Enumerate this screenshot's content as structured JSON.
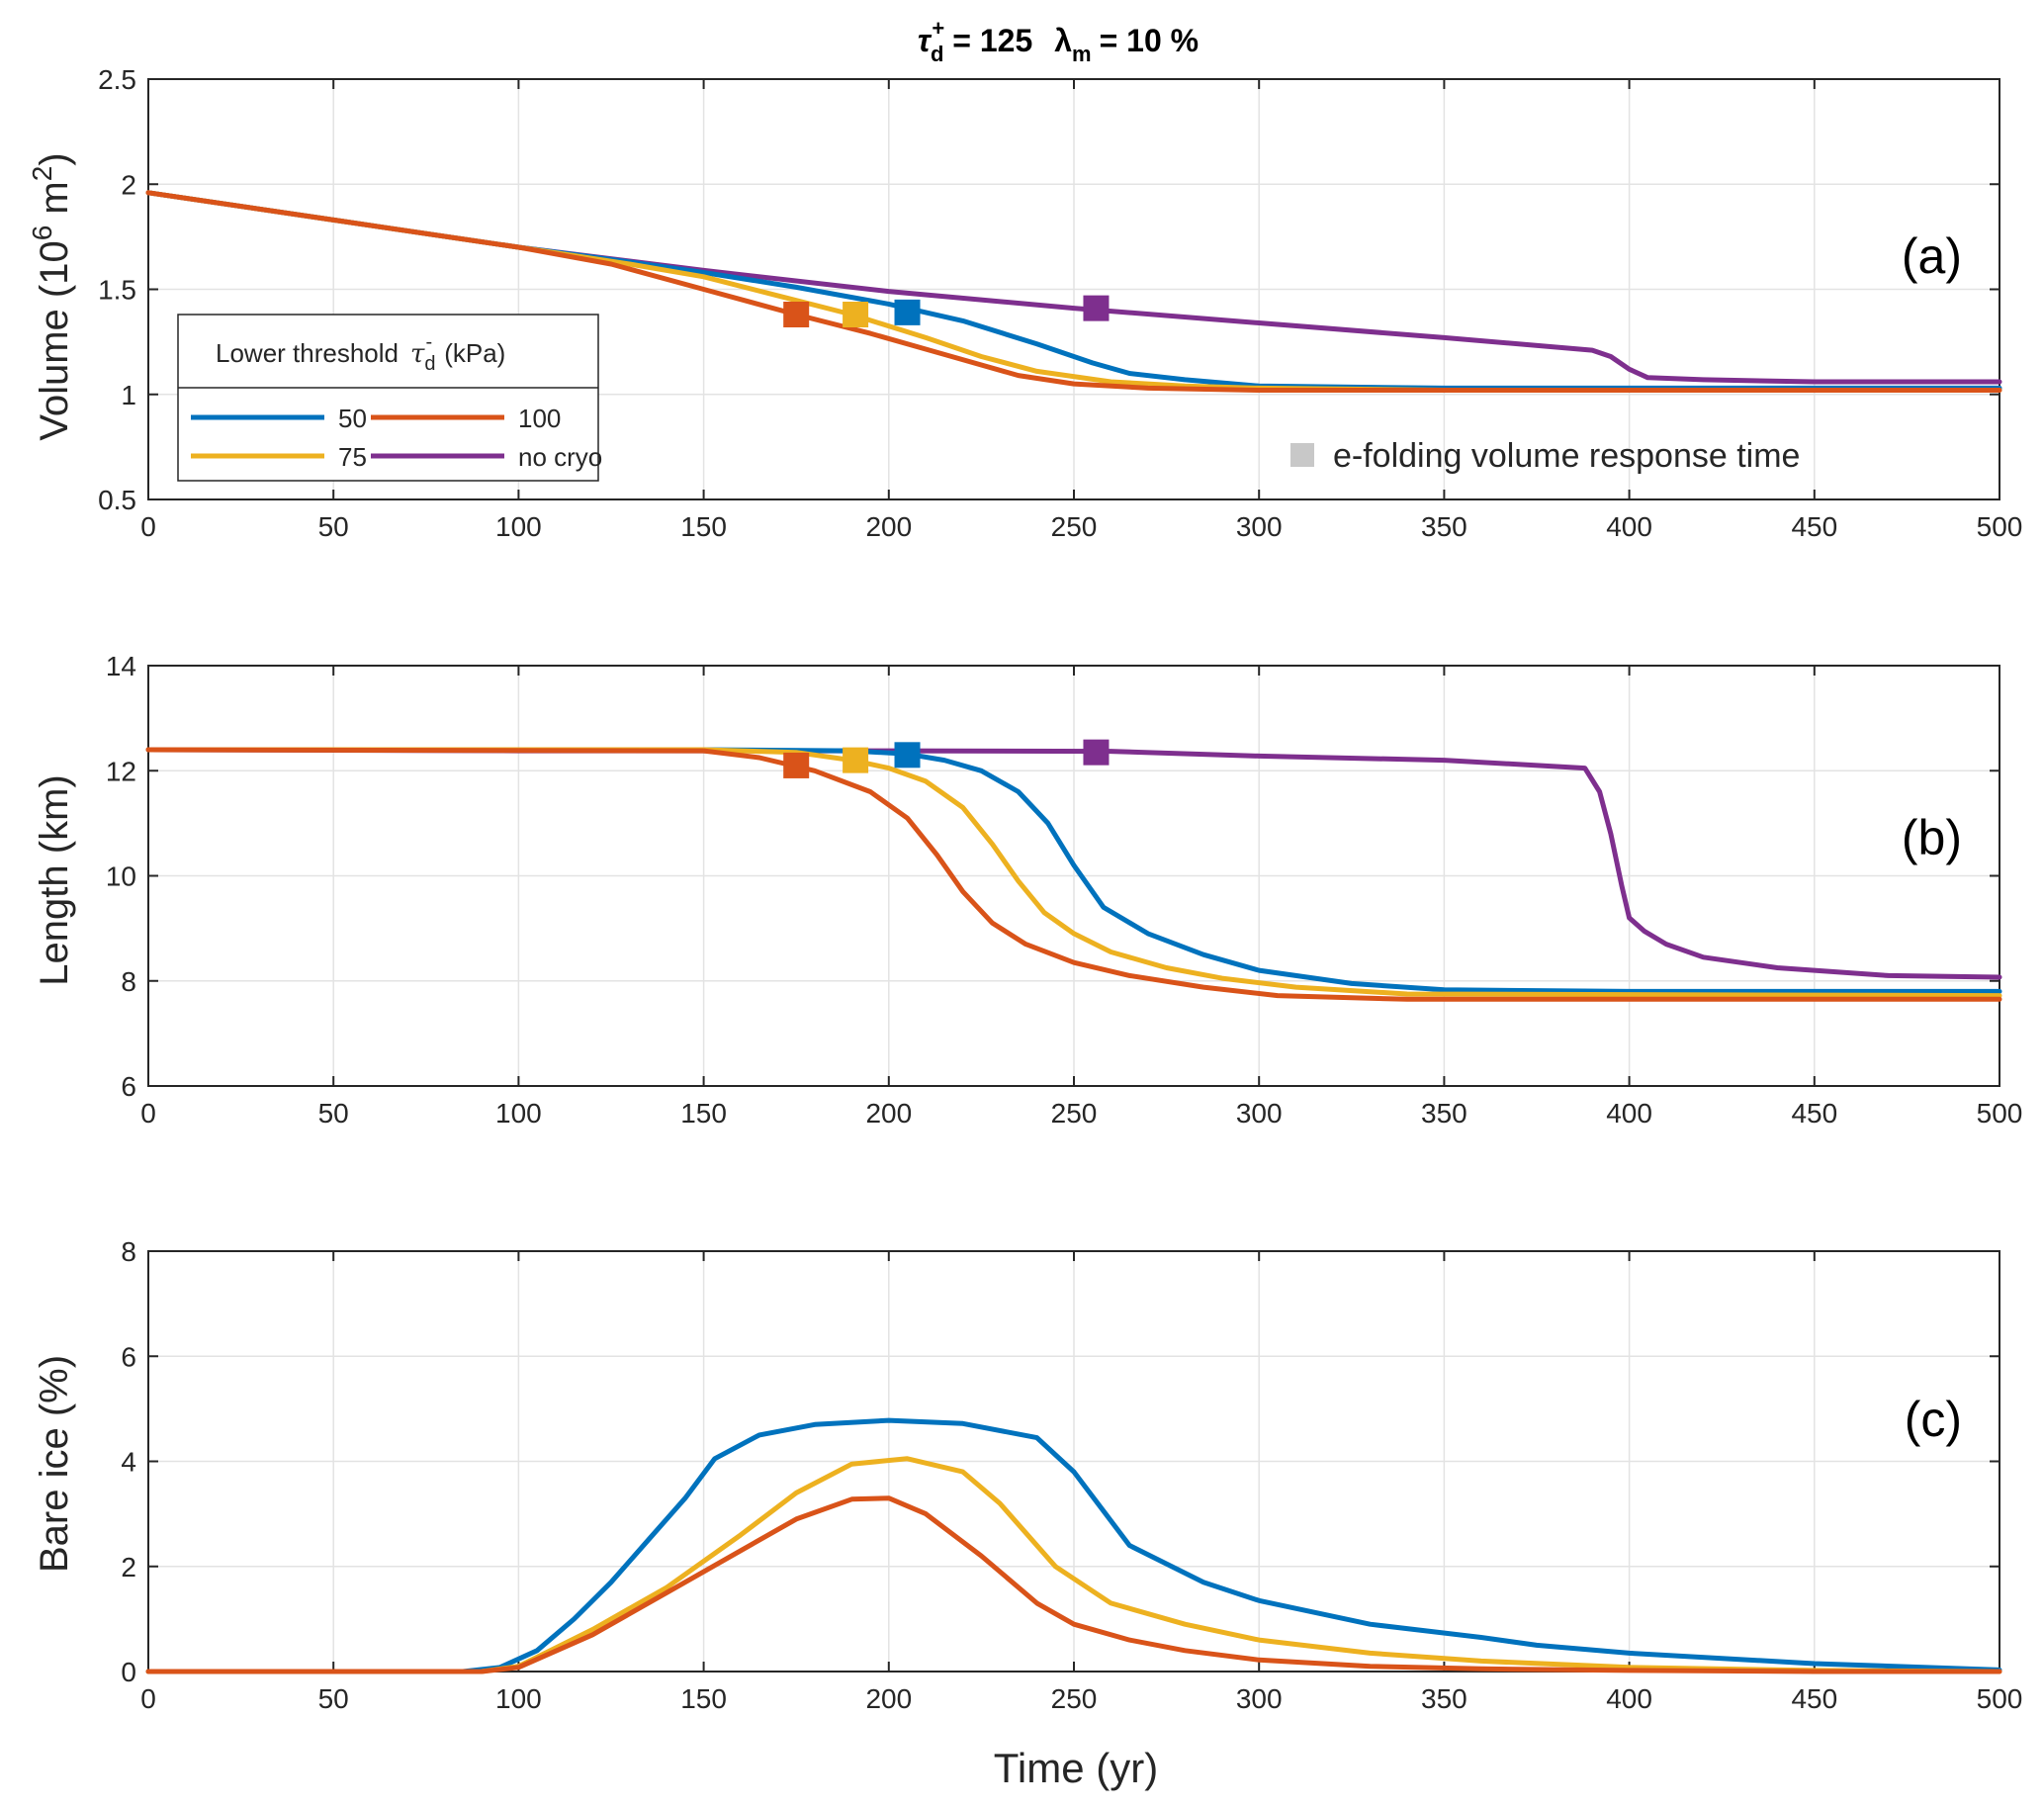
{
  "title": {
    "tau": "τ",
    "tau_sub": "d",
    "tau_sup": "+",
    "tau_value": "= 125",
    "lambda": "λ",
    "lambda_sub": "m",
    "lambda_value": "= 10 %"
  },
  "colors": {
    "50": "#0072BD",
    "75": "#EDB120",
    "100": "#D95319",
    "no cryo": "#7E2F8E",
    "note_marker": "#c8c8c8"
  },
  "legend": {
    "title_prefix": "Lower threshold",
    "title_symbol": "τ",
    "title_sub": "d",
    "title_sup": "-",
    "title_unit": "(kPa)",
    "entries": [
      {
        "key": "50",
        "label": "50"
      },
      {
        "key": "100",
        "label": "100"
      },
      {
        "key": "75",
        "label": "75"
      },
      {
        "key": "no cryo",
        "label": "no cryo"
      }
    ]
  },
  "note": {
    "label": "e-folding volume response time"
  },
  "chart_data": [
    {
      "type": "line",
      "panel_label": "(a)",
      "ylabel_prefix": "Volume (10",
      "ylabel_sup": "6",
      "ylabel_mid": " m",
      "ylabel_sup2": "2",
      "ylabel_suffix": ")",
      "xlabel": "",
      "xlim": [
        0,
        500
      ],
      "ylim": [
        0.5,
        2.5
      ],
      "xticks": [
        0,
        50,
        100,
        150,
        200,
        250,
        300,
        350,
        400,
        450,
        500
      ],
      "yticks": [
        0.5,
        1,
        1.5,
        2,
        2.5
      ],
      "grid": true,
      "series": [
        {
          "name": "50",
          "x": [
            0,
            50,
            100,
            130,
            150,
            175,
            200,
            220,
            240,
            255,
            265,
            280,
            300,
            350,
            400,
            450,
            500
          ],
          "y": [
            1.96,
            1.83,
            1.7,
            1.63,
            1.58,
            1.51,
            1.43,
            1.35,
            1.24,
            1.15,
            1.1,
            1.07,
            1.04,
            1.03,
            1.03,
            1.03,
            1.03
          ]
        },
        {
          "name": "75",
          "x": [
            0,
            50,
            100,
            130,
            150,
            170,
            190,
            210,
            225,
            240,
            260,
            280,
            300,
            350,
            400,
            450,
            500
          ],
          "y": [
            1.96,
            1.83,
            1.7,
            1.62,
            1.56,
            1.47,
            1.38,
            1.27,
            1.18,
            1.11,
            1.06,
            1.04,
            1.03,
            1.02,
            1.02,
            1.02,
            1.02
          ]
        },
        {
          "name": "100",
          "x": [
            0,
            50,
            100,
            125,
            150,
            175,
            195,
            215,
            235,
            250,
            270,
            300,
            350,
            400,
            450,
            500
          ],
          "y": [
            1.96,
            1.83,
            1.7,
            1.62,
            1.5,
            1.38,
            1.29,
            1.19,
            1.09,
            1.05,
            1.03,
            1.02,
            1.02,
            1.02,
            1.02,
            1.02
          ]
        },
        {
          "name": "no cryo",
          "x": [
            0,
            50,
            100,
            150,
            200,
            250,
            300,
            350,
            390,
            395,
            400,
            405,
            420,
            450,
            500
          ],
          "y": [
            1.96,
            1.83,
            1.7,
            1.59,
            1.49,
            1.41,
            1.34,
            1.27,
            1.21,
            1.18,
            1.12,
            1.08,
            1.07,
            1.06,
            1.06
          ]
        }
      ],
      "markers": [
        {
          "series": "100",
          "x": 175,
          "y": 1.38
        },
        {
          "series": "75",
          "x": 191,
          "y": 1.38
        },
        {
          "series": "50",
          "x": 205,
          "y": 1.39
        },
        {
          "series": "no cryo",
          "x": 256,
          "y": 1.41
        }
      ]
    },
    {
      "type": "line",
      "panel_label": "(b)",
      "ylabel": "Length (km)",
      "xlabel": "",
      "xlim": [
        0,
        500
      ],
      "ylim": [
        6,
        14
      ],
      "xticks": [
        0,
        50,
        100,
        150,
        200,
        250,
        300,
        350,
        400,
        450,
        500
      ],
      "yticks": [
        6,
        8,
        10,
        12,
        14
      ],
      "grid": true,
      "series": [
        {
          "name": "50",
          "x": [
            0,
            150,
            190,
            205,
            215,
            225,
            235,
            243,
            250,
            258,
            270,
            285,
            300,
            325,
            350,
            400,
            500
          ],
          "y": [
            12.4,
            12.4,
            12.38,
            12.32,
            12.2,
            12.0,
            11.6,
            11.0,
            10.2,
            9.4,
            8.9,
            8.5,
            8.2,
            7.95,
            7.83,
            7.8,
            7.8
          ]
        },
        {
          "name": "75",
          "x": [
            0,
            150,
            175,
            190,
            200,
            210,
            220,
            228,
            235,
            242,
            250,
            260,
            275,
            290,
            310,
            340,
            500
          ],
          "y": [
            12.4,
            12.4,
            12.35,
            12.2,
            12.05,
            11.8,
            11.3,
            10.6,
            9.9,
            9.3,
            8.9,
            8.55,
            8.25,
            8.05,
            7.88,
            7.75,
            7.72
          ]
        },
        {
          "name": "100",
          "x": [
            0,
            150,
            165,
            180,
            195,
            205,
            213,
            220,
            228,
            237,
            250,
            265,
            285,
            305,
            340,
            500
          ],
          "y": [
            12.4,
            12.38,
            12.25,
            12.0,
            11.6,
            11.1,
            10.4,
            9.7,
            9.1,
            8.7,
            8.35,
            8.1,
            7.88,
            7.72,
            7.65,
            7.65
          ]
        },
        {
          "name": "no cryo",
          "x": [
            0,
            100,
            200,
            260,
            300,
            350,
            388,
            392,
            395,
            398,
            400,
            404,
            410,
            420,
            440,
            470,
            500
          ],
          "y": [
            12.4,
            12.38,
            12.38,
            12.37,
            12.28,
            12.2,
            12.05,
            11.6,
            10.8,
            9.8,
            9.2,
            8.95,
            8.7,
            8.45,
            8.25,
            8.1,
            8.07
          ]
        }
      ],
      "markers": [
        {
          "series": "100",
          "x": 175,
          "y": 12.1
        },
        {
          "series": "75",
          "x": 191,
          "y": 12.2
        },
        {
          "series": "50",
          "x": 205,
          "y": 12.3
        },
        {
          "series": "no cryo",
          "x": 256,
          "y": 12.35
        }
      ]
    },
    {
      "type": "line",
      "panel_label": "(c)",
      "ylabel": "Bare ice (%)",
      "xlabel": "Time (yr)",
      "xlim": [
        0,
        500
      ],
      "ylim": [
        0,
        8
      ],
      "xticks": [
        0,
        50,
        100,
        150,
        200,
        250,
        300,
        350,
        400,
        450,
        500
      ],
      "yticks": [
        0,
        2,
        4,
        6,
        8
      ],
      "grid": true,
      "series": [
        {
          "name": "50",
          "x": [
            0,
            85,
            95,
            105,
            115,
            125,
            135,
            145,
            153,
            165,
            180,
            200,
            220,
            240,
            250,
            265,
            285,
            300,
            330,
            360,
            375,
            400,
            450,
            500
          ],
          "y": [
            0,
            0,
            0.08,
            0.4,
            1.0,
            1.7,
            2.5,
            3.3,
            4.05,
            4.5,
            4.7,
            4.78,
            4.72,
            4.45,
            3.8,
            2.4,
            1.7,
            1.35,
            0.9,
            0.65,
            0.5,
            0.35,
            0.15,
            0.03
          ]
        },
        {
          "name": "75",
          "x": [
            0,
            90,
            100,
            120,
            140,
            160,
            175,
            190,
            205,
            220,
            230,
            245,
            260,
            280,
            300,
            330,
            360,
            400,
            450,
            500
          ],
          "y": [
            0,
            0,
            0.1,
            0.8,
            1.6,
            2.6,
            3.4,
            3.95,
            4.05,
            3.8,
            3.2,
            2.0,
            1.3,
            0.9,
            0.6,
            0.35,
            0.2,
            0.08,
            0.02,
            0
          ]
        },
        {
          "name": "100",
          "x": [
            0,
            90,
            100,
            120,
            140,
            160,
            175,
            190,
            200,
            210,
            225,
            240,
            250,
            265,
            280,
            300,
            330,
            360,
            400,
            450,
            500
          ],
          "y": [
            0,
            0,
            0.08,
            0.7,
            1.5,
            2.3,
            2.9,
            3.28,
            3.3,
            3.0,
            2.2,
            1.3,
            0.9,
            0.6,
            0.4,
            0.22,
            0.1,
            0.05,
            0.02,
            0,
            0
          ]
        }
      ],
      "markers": []
    }
  ]
}
